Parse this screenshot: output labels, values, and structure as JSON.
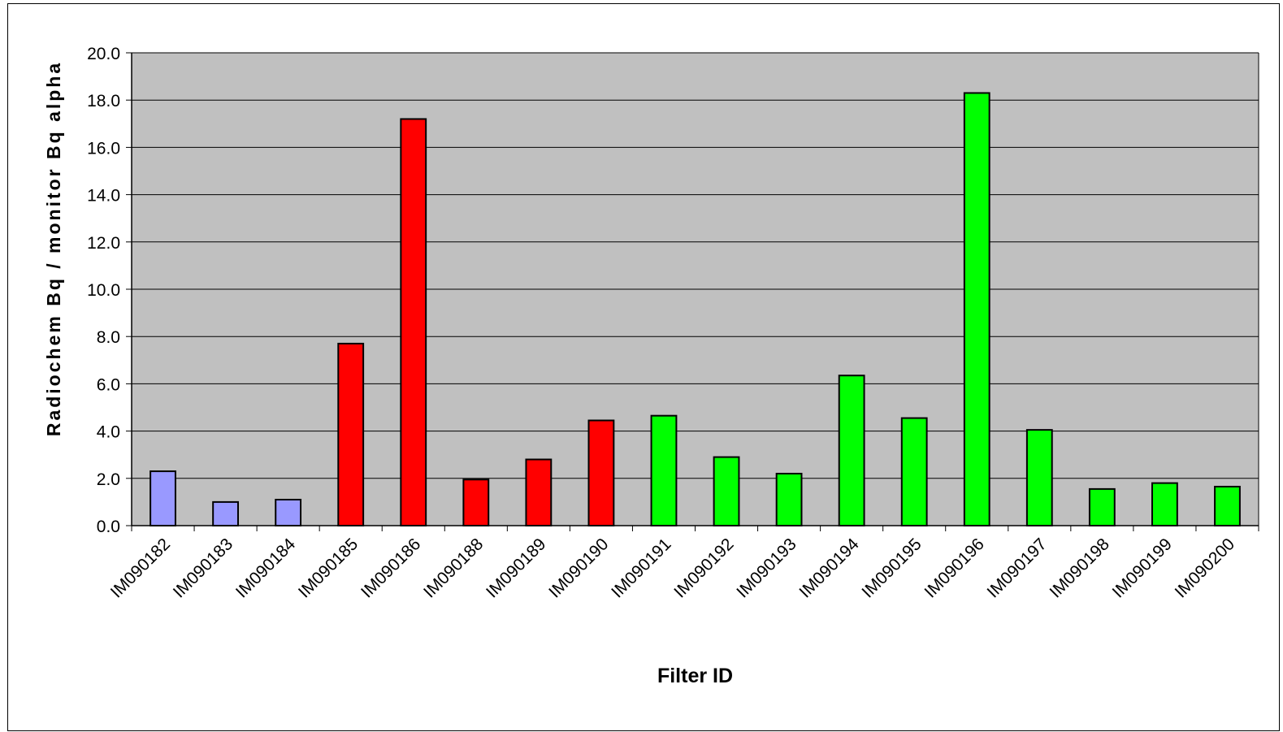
{
  "chart_data": {
    "type": "bar",
    "title": "",
    "xlabel": "Filter ID",
    "ylabel": "Radiochem Bq / monitor Bq alpha",
    "ylim": [
      0,
      20
    ],
    "yticks": [
      "0.0",
      "2.0",
      "4.0",
      "6.0",
      "8.0",
      "10.0",
      "12.0",
      "14.0",
      "16.0",
      "18.0",
      "20.0"
    ],
    "grid": true,
    "legend": "none",
    "categories": [
      "IM090182",
      "IM090183",
      "IM090184",
      "IM090185",
      "IM090186",
      "IM090188",
      "IM090189",
      "IM090190",
      "IM090191",
      "IM090192",
      "IM090193",
      "IM090194",
      "IM090195",
      "IM090196",
      "IM090197",
      "IM090198",
      "IM090199",
      "IM090200"
    ],
    "values": [
      2.3,
      1.0,
      1.1,
      7.7,
      17.2,
      1.95,
      2.8,
      4.45,
      4.65,
      2.9,
      2.2,
      6.35,
      4.55,
      18.3,
      4.05,
      1.55,
      1.8,
      1.65
    ],
    "bar_colors": [
      "#9999ff",
      "#9999ff",
      "#9999ff",
      "#ff0000",
      "#ff0000",
      "#ff0000",
      "#ff0000",
      "#ff0000",
      "#00ff00",
      "#00ff00",
      "#00ff00",
      "#00ff00",
      "#00ff00",
      "#00ff00",
      "#00ff00",
      "#00ff00",
      "#00ff00",
      "#00ff00"
    ],
    "plot_background": "#c0c0c0"
  }
}
